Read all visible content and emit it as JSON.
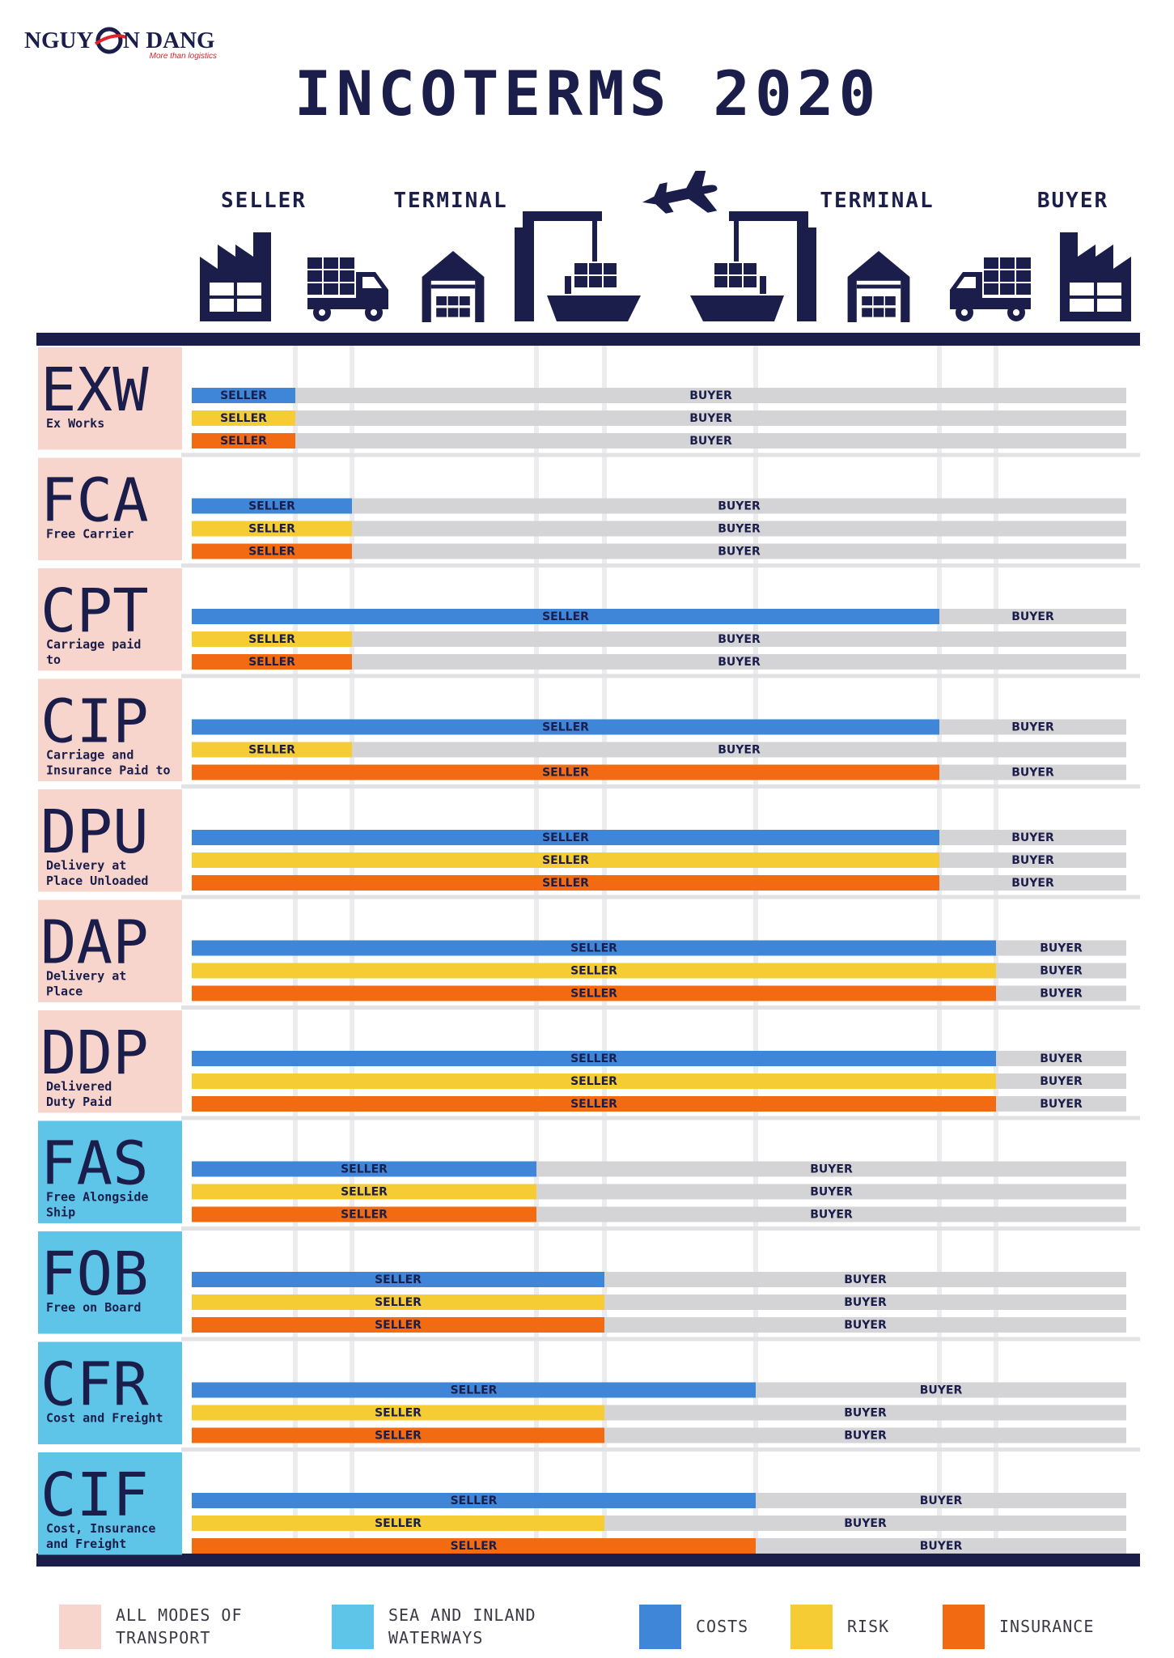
{
  "logo": {
    "left": "NGUY",
    "right": "N DANG",
    "tagline": "More than logistics"
  },
  "title": "INCOTERMS 2020",
  "stages": [
    "SELLER",
    "TERMINAL",
    "TERMINAL",
    "BUYER"
  ],
  "rows": [
    {
      "code": "EXW",
      "name": [
        "Ex Works"
      ],
      "bars": [
        {
          "seller": "SELLER",
          "buyer": "BUYER"
        },
        {
          "seller": "SELLER",
          "buyer": "BUYER"
        },
        {
          "seller": "SELLER",
          "buyer": "BUYER"
        }
      ]
    },
    {
      "code": "FCA",
      "name": [
        "Free Carrier"
      ],
      "bars": [
        {
          "seller": "SELLER",
          "buyer": "BUYER"
        },
        {
          "seller": "SELLER",
          "buyer": "BUYER"
        },
        {
          "seller": "SELLER",
          "buyer": "BUYER"
        }
      ]
    },
    {
      "code": "CPT",
      "name": [
        "Carriage paid",
        "to"
      ],
      "bars": [
        {
          "seller": "SELLER",
          "buyer": "BUYER"
        },
        {
          "seller": "SELLER",
          "buyer": "BUYER"
        },
        {
          "seller": "SELLER",
          "buyer": "BUYER"
        }
      ]
    },
    {
      "code": "CIP",
      "name": [
        "Carriage and",
        "Insurance Paid to"
      ],
      "bars": [
        {
          "seller": "SELLER",
          "buyer": "BUYER"
        },
        {
          "seller": "SELLER",
          "buyer": "BUYER"
        },
        {
          "seller": "SELLER",
          "buyer": "BUYER"
        }
      ]
    },
    {
      "code": "DPU",
      "name": [
        "Delivery at",
        "Place Unloaded"
      ],
      "bars": [
        {
          "seller": "SELLER",
          "buyer": "BUYER"
        },
        {
          "seller": "SELLER",
          "buyer": "BUYER"
        },
        {
          "seller": "SELLER",
          "buyer": "BUYER"
        }
      ]
    },
    {
      "code": "DAP",
      "name": [
        "Delivery at",
        "Place"
      ],
      "bars": [
        {
          "seller": "SELLER",
          "buyer": "BUYER"
        },
        {
          "seller": "SELLER",
          "buyer": "BUYER"
        },
        {
          "seller": "SELLER",
          "buyer": "BUYER"
        }
      ]
    },
    {
      "code": "DDP",
      "name": [
        "Delivered",
        "Duty Paid"
      ],
      "bars": [
        {
          "seller": "SELLER",
          "buyer": "BUYER"
        },
        {
          "seller": "SELLER",
          "buyer": "BUYER"
        },
        {
          "seller": "SELLER",
          "buyer": "BUYER"
        }
      ]
    },
    {
      "code": "FAS",
      "name": [
        "Free Alongside",
        "Ship"
      ],
      "bars": [
        {
          "seller": "SELLER",
          "buyer": "BUYER"
        },
        {
          "seller": "SELLER",
          "buyer": "BUYER"
        },
        {
          "seller": "SELLER",
          "buyer": "BUYER"
        }
      ]
    },
    {
      "code": "FOB",
      "name": [
        "Free on Board"
      ],
      "bars": [
        {
          "seller": "SELLER",
          "buyer": "BUYER"
        },
        {
          "seller": "SELLER",
          "buyer": "BUYER"
        },
        {
          "seller": "SELLER",
          "buyer": "BUYER"
        }
      ]
    },
    {
      "code": "CFR",
      "name": [
        "Cost and Freight"
      ],
      "bars": [
        {
          "seller": "SELLER",
          "buyer": "BUYER"
        },
        {
          "seller": "SELLER",
          "buyer": "BUYER"
        },
        {
          "seller": "SELLER",
          "buyer": "BUYER"
        }
      ]
    },
    {
      "code": "CIF",
      "name": [
        "Cost, Insurance",
        "and Freight"
      ],
      "bars": [
        {
          "seller": "SELLER",
          "buyer": "BUYER"
        },
        {
          "seller": "SELLER",
          "buyer": "BUYER"
        },
        {
          "seller": "SELLER",
          "buyer": "BUYER"
        }
      ]
    }
  ],
  "legend": [
    {
      "label": [
        "ALL MODES OF",
        "TRANSPORT"
      ]
    },
    {
      "label": [
        "SEA AND INLAND",
        "WATERWAYS"
      ]
    },
    {
      "label": [
        "COSTS"
      ]
    },
    {
      "label": [
        "RISK"
      ]
    },
    {
      "label": [
        "INSURANCE"
      ]
    }
  ]
}
